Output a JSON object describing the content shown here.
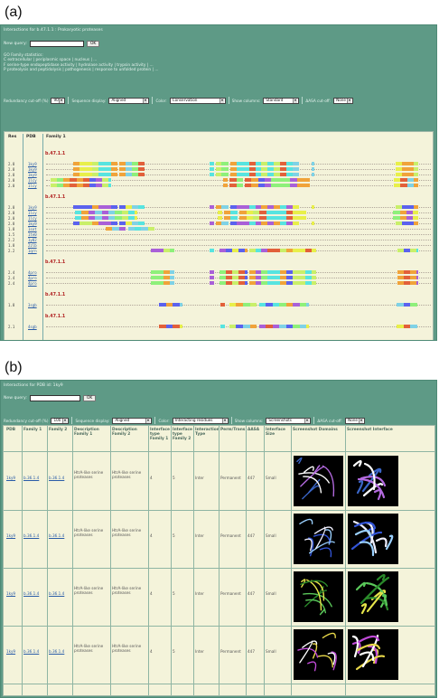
{
  "labels": {
    "a": "(a)",
    "b": "(b)"
  },
  "panel_a": {
    "title": "Interactions for b.47.1.1 : Prokaryotic proteases",
    "new_query_label": "New query:",
    "ok": "OK",
    "go_title": "GO Family statistics:",
    "go_lines": [
      "C  extracellular  |  periplasmic space  |  nucleus  |  ...",
      "F  serine-type endopeptidase activity  |  hydrolase activity  |  trypsin activity  |  ...",
      "P  proteolysis and peptidolysis  |  pathogenesis  |  response to unfolded protein  |  ..."
    ],
    "controls": {
      "redundancy_label": "Redundancy cut-off (%)",
      "redundancy_value": "90",
      "seq_label": "Sequence display:",
      "seq_value": "Aligned",
      "color_label": "Color:",
      "color_value": "Conservation",
      "columns_label": "Show columns:",
      "columns_value": "Standard",
      "dasa_label": "ΔASA cut-off:",
      "dasa_value": "None"
    },
    "headers": {
      "res": "Res",
      "pdb": "PDB",
      "family": "Family 1"
    },
    "groups": [
      {
        "family": "b.47.1.1",
        "rows": [
          {
            "res": "2.8",
            "pdb": "1ky9",
            "seq": "-------------gpslapleknpsvsivnvgtt-vntpranfgqff-------------------------------gg-qqqtfm-gpgvisdaekgyvvtnnhvvdnattikvqlsdg------a---------------------------------------rkfdakvvgkd------"
          },
          {
            "res": "2.8",
            "pdb": "1ky9",
            "seq": "-------------gpslapleknpsvsivnvgtt-vntpranfgqff-------------------------------gg-qqqtfm-gpgvisdaekgyvvtnnhvvdnattikvqlsdg------a---------------------------------------rkfdakvvgkd------"
          },
          {
            "res": "2.8",
            "pdb": "1ky9",
            "seq": "-------------gpslapleknpsvsivnvgtt-vntpranfgqff-------------------------------gg-qqqtfm-gpgvisdaekgyvvtnnhvvdnattikvqlsdg------a---------------------------------------rkfdakvvgkd------"
          },
          {
            "res": "2.0",
            "pdb": "1lcy",
            "seq": "--GSRSPSIPMVDARVSVVPTAAQTRGRPF----------------------------------------------------gg-GSGVIF-DDGRVVTNHHVVAHDAVRALAHDQRGLRRA---------------------------------------rPFDAELVGRD------"
          },
          {
            "res": "2.0",
            "pdb": "1lcy",
            "seq": "--GSRSPSIPMVDARVSVVPTAAQTRGRPF----------------------------------------------------gg-GSGVIF-DDGRVVTNHHVVAHDAVRALAHDQRGLRRA---------------------------------------rPFDAELVGRD------"
          }
        ]
      },
      {
        "family": "b.47.1.1",
        "rows": [
          {
            "res": "2.8",
            "pdb": "1ky9",
            "seq": "-------------gPSLAPLEknpsvsivnvgtt-vntpranfgqff-------------------------------gg-qqqtfm-gpgvisdaekgyvvtnnhvvdnattikvqlsdg------a---------------------------------------rkfdakvvgkd------"
          },
          {
            "res": "2.0",
            "pdb": "1lcy",
            "seq": "-------------GSRSPSIPMVDARVSVVPTAAQTRGRPF------------------------------------gg-GSGVIF-DDGRVVTNHHVVAHDAVRALAHDQRGLRRA---------------------------------------rPFDAELVGRD------"
          },
          {
            "res": "2.0",
            "pdb": "1lcy",
            "seq": "-------------GSRSPSIPMVDARVSVVPTAAQTRGRPF------------------------------------gg-GSGVIF-DDGRVVTNHHVVAHDAVRALAHDQRGLRRA---------------------------------------rPFDAELVGRD------"
          },
          {
            "res": "2.8",
            "pdb": "1ky9",
            "seq": "-------------gpslapleknpsvsivnvgtt-vntpranfgqff-------------------------------gg-qqqtfm-gpgvisdaekgyvvtnnhvvdnattikvqlsdg------a---------------------------------------rkfdakvvgkd------"
          },
          {
            "res": "1.8",
            "pdb": "1sot",
            "seq": "---------------------------VAVGAAgtt-VNTPRPMFQQFF-----------------------------------------------------------------------------------------------------------------------------"
          },
          {
            "res": "1.5",
            "pdb": "1te0",
            "seq": "-------------------------------------------------------------------------------------------------------------------------------------------------------------------------------------------"
          },
          {
            "res": "2.2",
            "pdb": "1y82",
            "seq": "----------------------------------------------------------------------------------------------------------------------------------------------------------------------------------------------"
          },
          {
            "res": "1.8",
            "pdb": "2zlb",
            "seq": "-------------------------------------------------------------------------------------------------------------------------------------------------------------------------------------------------"
          },
          {
            "res": "2.2",
            "pdb": "1qrn",
            "seq": "--------------------------------------------------aniaqgiesle-----------------na---slgvsfgsrvgtt-lpgtvsvgtrggrliltnnhvasnaatiqgaw---------------------------------------ftfaanfygn------"
          }
        ]
      },
      {
        "family": "b.47.1.1",
        "rows": [
          {
            "res": "2.4",
            "pdb": "4pro",
            "seq": "--------------------------------------------------aniaqgiesle-----------------na---slgvsfgsrvgtt-lpgtvsvgtrggrliltnnhvasnaatiqgaw---------------------------------------ftfaanfygn------"
          },
          {
            "res": "2.4",
            "pdb": "4pro",
            "seq": "--------------------------------------------------aniaqgiesle-----------------na---slgvsfgsrvgtt-lpgtvsvgtrggrliltnnhvasnaatiqgaw---------------------------------------ftfaanfygn------"
          },
          {
            "res": "2.4",
            "pdb": "4pro",
            "seq": "--------------------------------------------------aniaqgiesle-----------------na---slgvsfgsrvgtt-lpgtvsvgtrggrliltnnhvasnaatiqgaw---------------------------------------ftfaanfygn------"
          }
        ]
      },
      {
        "family": "b.47.1.1",
        "rows": [
          {
            "res": "1.8",
            "pdb": "3sgb",
            "seq": "--------------------------------------------------isggdaiysa-----------------ts--rcsvgfnvtkgv-pgaltagcatmvsgsrnrtttd---------------------------------------actrsaqyd------"
          }
        ]
      },
      {
        "family": "b.47.1.1",
        "rows": [
          {
            "res": "2.1",
            "pdb": "4sgb",
            "seq": "--------------------------------------------------isggdaiysa-----------------ts--rcsvgfnvtkgv-pgaltagcatmvsgsrnrtttd---------------------------------------actrsaqyd------"
          }
        ]
      }
    ]
  },
  "panel_b": {
    "title": "Interactions for PDB id: 1ky9",
    "new_query_label": "New query:",
    "ok": "OK",
    "controls": {
      "redundancy_label": "Redundancy cut-off (%)",
      "redundancy_value": "100",
      "seq_label": "Sequence display:",
      "seq_value": "Aligned",
      "color_label": "Color:",
      "color_value": "Interacting residues",
      "columns_label": "Show columns:",
      "columns_value": "Screenshots",
      "dasa_label": "ΔASA cut-off:",
      "dasa_value": "None"
    },
    "columns": [
      "PDB",
      "Family 1",
      "Family 2",
      "Description Family 1",
      "Description Family 2",
      "Interface type Family 1",
      "Interface type Family 2",
      "Interaction Type",
      "Perm/Trans",
      "ΔASA",
      "Interface Size",
      "Screenshot Domains",
      "Screenshot Interface"
    ],
    "rows": [
      {
        "pdb": "1ky9",
        "f1": "b.36.1.4",
        "f2": "b.36.1.4",
        "d1": "HtrA-like serine proteases",
        "d2": "HtrA-like serine proteases",
        "t1": "4",
        "t2": "5",
        "itype": "Inter",
        "perm": "Permanent",
        "dasa": "447",
        "size": "Small"
      },
      {
        "pdb": "1ky9",
        "f1": "b.36.1.4",
        "f2": "b.36.1.4",
        "d1": "HtrA-like serine proteases",
        "d2": "HtrA-like serine proteases",
        "t1": "4",
        "t2": "5",
        "itype": "Inter",
        "perm": "Permanent",
        "dasa": "447",
        "size": "Small"
      },
      {
        "pdb": "1ky9",
        "f1": "b.36.1.4",
        "f2": "b.36.1.4",
        "d1": "HtrA-like serine proteases",
        "d2": "HtrA-like serine proteases",
        "t1": "4",
        "t2": "5",
        "itype": "Inter",
        "perm": "Permanent",
        "dasa": "447",
        "size": "Small"
      },
      {
        "pdb": "1ky9",
        "f1": "b.36.1.4",
        "f2": "b.36.1.4",
        "d1": "HtrA-like serine proteases",
        "d2": "HtrA-like serine proteases",
        "t1": "4",
        "t2": "5",
        "itype": "Inter",
        "perm": "Permanent",
        "dasa": "447",
        "size": "Small"
      }
    ]
  },
  "colors": {
    "panel": "#5e9a86",
    "content": "#f4f3da",
    "family": "#b02020",
    "link": "#2a5ca8",
    "cons_blue": "#5b62ee",
    "cons_cyan": "#57e4e0",
    "cons_green": "#8ef07a",
    "cons_yellow": "#e8ef4a",
    "cons_orange": "#f0a33a",
    "cons_red": "#e2603a",
    "cons_purple": "#a960d8"
  }
}
